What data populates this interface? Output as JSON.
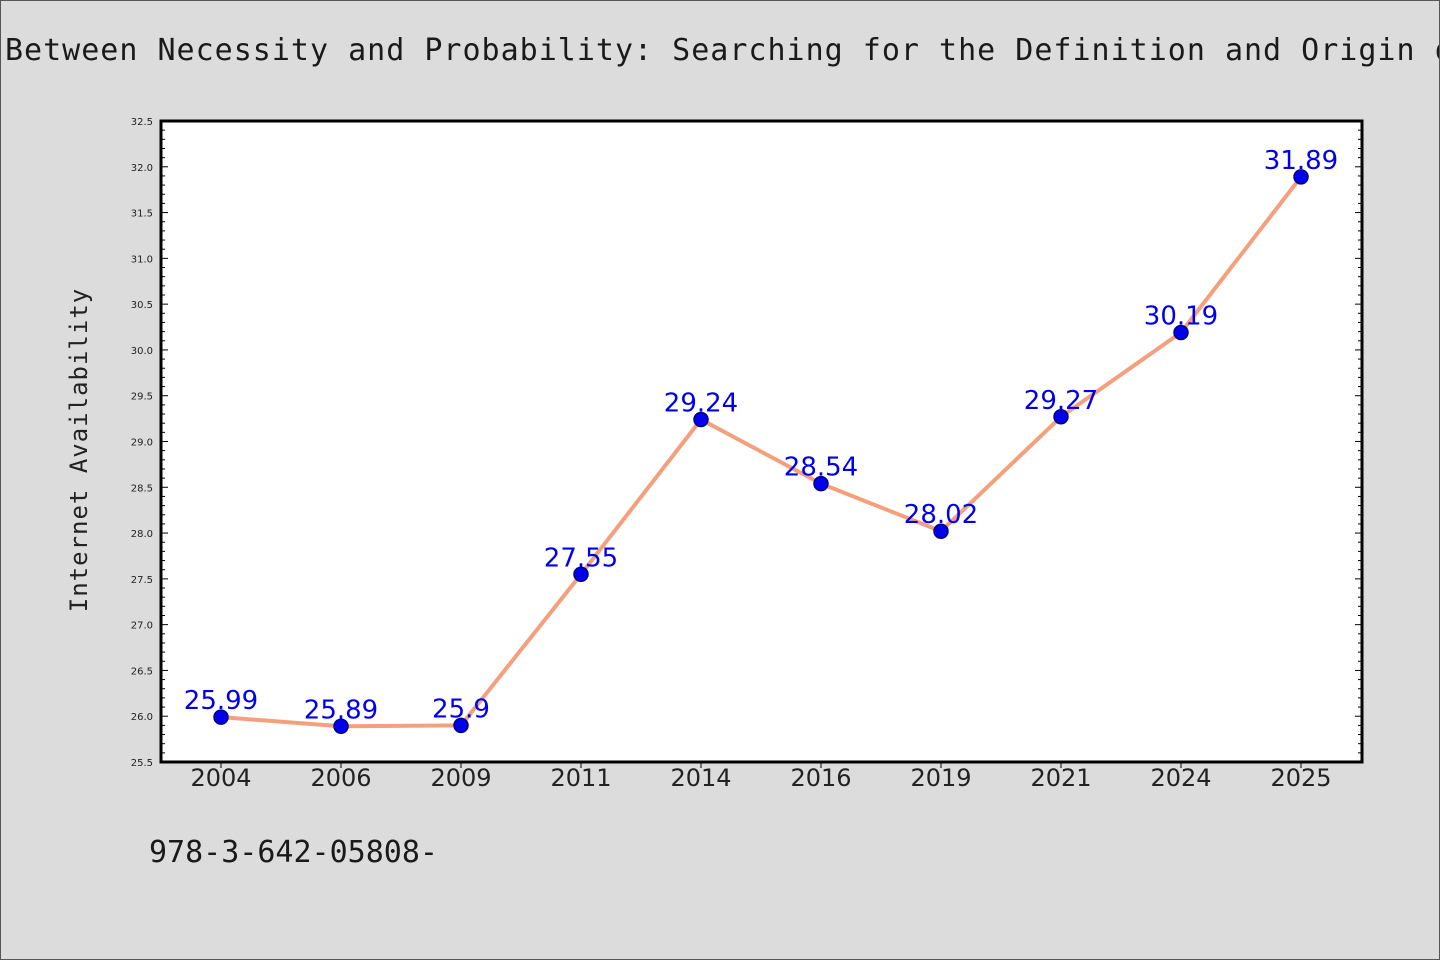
{
  "chart_data": {
    "type": "line",
    "title": "Between Necessity and Probability: Searching for the Definition and Origin of Life",
    "xlabel": "",
    "ylabel": "Internet Availability",
    "categories": [
      "2004",
      "2006",
      "2009",
      "2011",
      "2014",
      "2016",
      "2019",
      "2021",
      "2024",
      "2025"
    ],
    "series": [
      {
        "values": [
          25.99,
          25.89,
          25.9,
          27.55,
          29.24,
          28.54,
          28.02,
          29.27,
          30.19,
          31.89
        ],
        "data_labels": [
          "25.99",
          "25.89",
          "25.9",
          "27.55",
          "29.24",
          "28.54",
          "28.02",
          "29.27",
          "30.19",
          "31.89"
        ]
      }
    ],
    "ylim": [
      25.5,
      32.5
    ],
    "yticks": [
      "25.5",
      "26.0",
      "26.5",
      "27.0",
      "27.5",
      "28.0",
      "28.5",
      "29.0",
      "29.5",
      "30.0",
      "30.5",
      "31.0",
      "31.5",
      "32.0",
      "32.5"
    ],
    "grid": false,
    "legend": "none",
    "colors": {
      "line": "#f4a07c",
      "marker": "#0000ee",
      "marker_edge": "#000080",
      "data_label": "#0000ee",
      "background": "#dcdcdc",
      "plot_background": "#ffffff"
    }
  },
  "footnote": "978-3-642-05808-"
}
